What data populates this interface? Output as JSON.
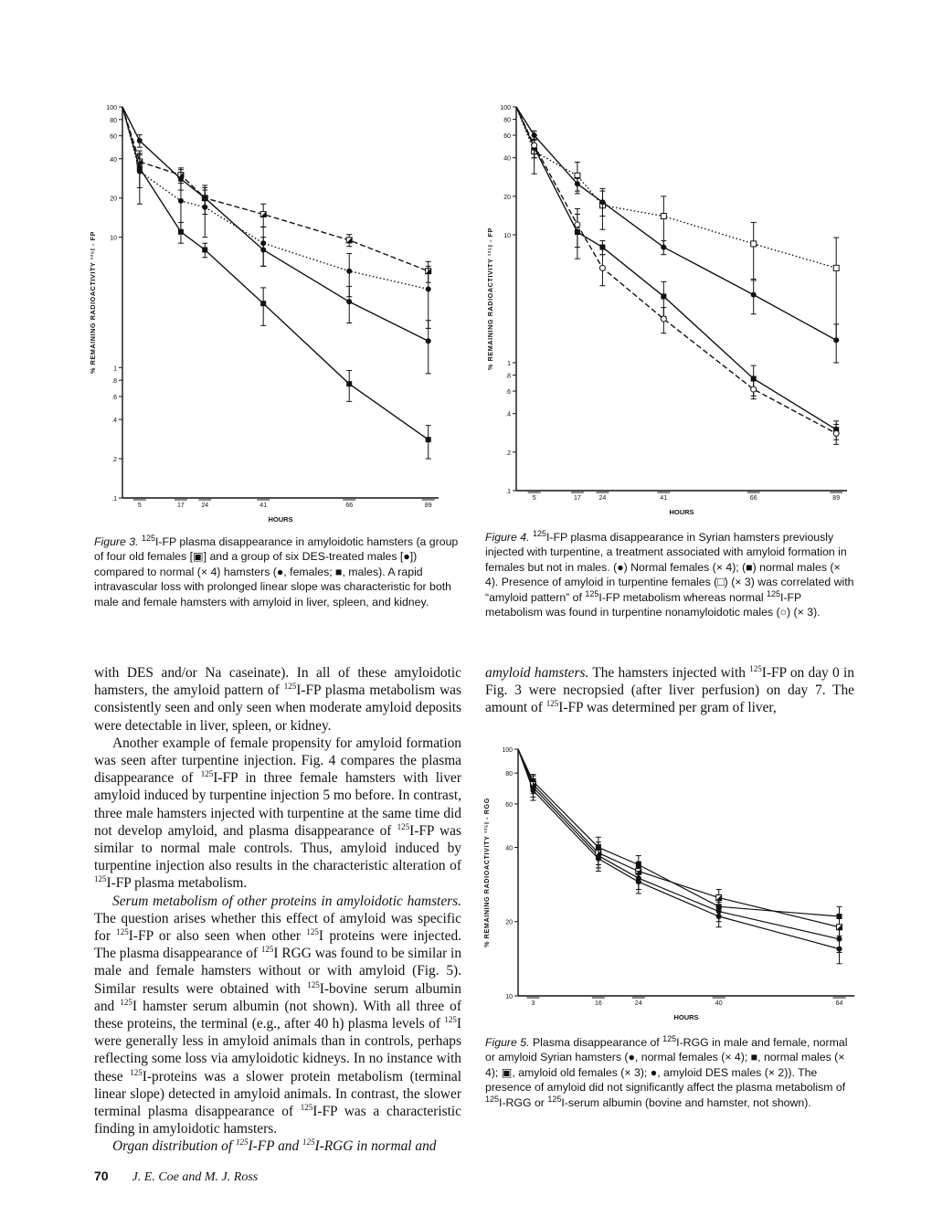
{
  "figures": [
    {
      "label": "Figure 3.",
      "caption_html": " <sup>125</sup>I-FP plasma disappearance in amyloidotic hamsters (a group of four old females [&#9635;] and a group of six DES-treated males [&#9679;]) compared to normal (&#215; 4) hamsters (&#9679;, females; &#9632;, males). A rapid intravascular loss with prolonged linear slope was characteristic for both male and female hamsters with amyloid in liver, spleen, and kidney.",
      "ylabel": "% REMAINING RADIOACTIVITY ¹²⁵I - FP",
      "xlabel": "HOURS"
    },
    {
      "label": "Figure 4.",
      "caption_html": " <sup>125</sup>I-FP plasma disappearance in Syrian hamsters previously injected with turpentine, a treatment associated with amyloid formation in females but not in males. (&#9679;) Normal females (&#215; 4); (&#9632;) normal males (&#215; 4). Presence of amyloid in turpentine females (&#9633;) (&#215; 3) was correlated with &#8220;amyloid pattern&#8221; of <sup>125</sup>I-FP metabolism whereas normal <sup>125</sup>I-FP metabolism was found in turpentine nonamyloidotic males (&#9675;) (&#215; 3).",
      "ylabel": "% REMAINING RADIOACTIVITY ¹²⁵I - FP",
      "xlabel": "HOURS"
    },
    {
      "label": "Figure 5.",
      "caption_html": " Plasma disappearance of <sup>125</sup>I-RGG in male and female, normal or amyloid Syrian hamsters (&#9679;, normal females (&#215; 4); &#9632;, normal males (&#215; 4); &#9635;, amyloid old females (&#215; 3); &#9679;, amyloid DES males (&#215; 2)). The presence of amyloid did not significantly affect the plasma metabolism of <sup>125</sup>I-RGG or <sup>125</sup>I-serum albumin (bovine and hamster, not shown).",
      "ylabel": "% REMAINING RADIOACTIVITY ¹²⁵I - RGG",
      "xlabel": "HOURS"
    }
  ],
  "chart_data": [
    {
      "type": "line",
      "scale": "log",
      "xlabel": "HOURS",
      "ylabel": "% REMAINING RADIOACTIVITY ¹²⁵I - FP",
      "xticks": [
        5,
        17,
        24,
        41,
        66,
        89
      ],
      "yticks": [
        "100",
        "80",
        "60",
        "40",
        "20",
        "10",
        "1",
        ".8",
        ".6",
        ".4",
        ".2",
        ".1"
      ],
      "ylim": [
        0.1,
        100
      ],
      "x": [
        0,
        5,
        17,
        24,
        41,
        66,
        89
      ],
      "series": [
        {
          "name": "amyloid old females",
          "marker": "half-square",
          "dash": "dashed",
          "values": [
            100,
            38,
            30,
            20,
            15,
            9.5,
            5.5
          ],
          "err": [
            0,
            5,
            4,
            3,
            3,
            1,
            1
          ]
        },
        {
          "name": "amyloid DES males",
          "marker": "circle",
          "dash": "dotted",
          "values": [
            100,
            32,
            19,
            17,
            9,
            5.5,
            4
          ],
          "err": [
            0,
            14,
            8,
            7,
            3,
            2,
            2
          ]
        },
        {
          "name": "normal females",
          "marker": "circle",
          "dash": "solid",
          "values": [
            100,
            55,
            28,
            20,
            8,
            3.2,
            1.6
          ],
          "err": [
            0,
            6,
            5,
            5,
            2,
            1,
            0.7
          ]
        },
        {
          "name": "normal males",
          "marker": "square",
          "dash": "solid",
          "values": [
            100,
            34,
            11,
            8,
            3.1,
            0.75,
            0.28
          ],
          "err": [
            0,
            10,
            2,
            1,
            1,
            0.2,
            0.08
          ]
        }
      ]
    },
    {
      "type": "line",
      "scale": "log",
      "xlabel": "HOURS",
      "ylabel": "% REMAINING RADIOACTIVITY ¹²⁵I - FP",
      "xticks": [
        5,
        17,
        24,
        41,
        66,
        89
      ],
      "yticks": [
        "100",
        "80",
        "60",
        "40",
        "20",
        "10",
        "1",
        ".8",
        ".6",
        ".4",
        ".2",
        ".1"
      ],
      "ylim": [
        0.1,
        100
      ],
      "x": [
        0,
        5,
        17,
        24,
        41,
        66,
        89
      ],
      "series": [
        {
          "name": "turpentine females (amyloid)",
          "marker": "open-square",
          "dash": "dotted",
          "values": [
            100,
            45,
            29,
            17,
            14,
            8.5,
            5.5
          ],
          "err": [
            0,
            15,
            8,
            6,
            6,
            4,
            4
          ]
        },
        {
          "name": "normal females",
          "marker": "circle",
          "dash": "solid",
          "values": [
            100,
            60,
            25,
            18,
            8,
            3.4,
            1.5
          ],
          "err": [
            0,
            5,
            3,
            4,
            1,
            1,
            0.5
          ]
        },
        {
          "name": "normal males",
          "marker": "square",
          "dash": "solid",
          "values": [
            100,
            48,
            10.5,
            8,
            3.3,
            0.75,
            0.3
          ],
          "err": [
            0,
            8,
            4,
            1,
            1,
            0.2,
            0.05
          ]
        },
        {
          "name": "turpentine males (nonamyloidotic)",
          "marker": "open-circle",
          "dash": "dashed",
          "values": [
            100,
            50,
            12,
            5.5,
            2.2,
            0.62,
            0.28
          ],
          "err": [
            0,
            10,
            4,
            1.5,
            0.5,
            0.1,
            0.05
          ]
        }
      ]
    },
    {
      "type": "line",
      "scale": "log",
      "xlabel": "HOURS",
      "ylabel": "% REMAINING RADIOACTIVITY ¹²⁵I - RGG",
      "xticks": [
        3,
        16,
        24,
        40,
        64
      ],
      "yticks": [
        "100",
        "80",
        "60",
        "40",
        "20",
        "10"
      ],
      "ylim": [
        10,
        100
      ],
      "x": [
        0,
        3,
        16,
        24,
        40,
        64
      ],
      "series": [
        {
          "name": "normal females",
          "marker": "circle",
          "dash": "solid",
          "values": [
            100,
            70,
            37,
            30,
            22,
            17
          ],
          "err": [
            0,
            6,
            4,
            3,
            2,
            2
          ]
        },
        {
          "name": "normal males",
          "marker": "square",
          "dash": "solid",
          "values": [
            100,
            74,
            40,
            34,
            23,
            21
          ],
          "err": [
            0,
            5,
            4,
            3,
            2,
            2
          ]
        },
        {
          "name": "amyloid old females",
          "marker": "half-square",
          "dash": "solid",
          "values": [
            100,
            72,
            38,
            32,
            25,
            19
          ],
          "err": [
            0,
            6,
            4,
            3,
            2,
            2
          ]
        },
        {
          "name": "amyloid DES males",
          "marker": "circle",
          "dash": "solid",
          "values": [
            100,
            68,
            36,
            29,
            21,
            15.5
          ],
          "err": [
            0,
            6,
            4,
            3,
            2,
            2
          ]
        }
      ]
    }
  ],
  "body": {
    "left_paragraphs": [
      "with DES and/or Na caseinate). In all of these amyloidotic hamsters, the amyloid pattern of <sup>125</sup>I-FP plasma metabolism was consistently seen and only seen when moderate amyloid deposits were detectable in liver, spleen, or kidney.",
      "Another example of female propensity for amyloid formation was seen after turpentine injection. Fig. 4 compares the plasma disappearance of <sup>125</sup>I-FP in three female hamsters with liver amyloid induced by turpentine injection 5 mo before. In contrast, three male hamsters injected with turpentine at the same time did not develop amyloid, and plasma disappearance of <sup>125</sup>I-FP was similar to normal male controls. Thus, amyloid induced by turpentine injection also results in the characteristic alteration of <sup>125</sup>I-FP plasma metabolism.",
      "<i>Serum metabolism of other proteins in amyloidotic hamsters.</i> The question arises whether this effect of amyloid was specific for <sup>125</sup>I-FP or also seen when other <sup>125</sup>I proteins were injected. The plasma disappearance of <sup>125</sup>I RGG was found to be similar in male and female hamsters without or with amyloid (Fig. 5). Similar results were obtained with <sup>125</sup>I-bovine serum albumin and <sup>125</sup>I hamster serum albumin (not shown). With all three of these proteins, the terminal (e.g., after 40 h) plasma levels of <sup>125</sup>I were generally less in amyloid animals than in controls, perhaps reflecting some loss via amyloidotic kidneys. In no instance with these <sup>125</sup>I-proteins was a slower protein metabolism (terminal linear slope) detected in amyloid animals. In contrast, the slower terminal plasma disappearance of <sup>125</sup>I-FP was a characteristic finding in amyloidotic hamsters.",
      "<i>Organ distribution of <sup>125</sup>I-FP and <sup>125</sup>I-RGG in normal and</i>"
    ],
    "right_paragraph": "<i>amyloid hamsters.</i> The hamsters injected with <sup>125</sup>I-FP on day 0 in Fig. 3 were necropsied (after liver perfusion) on day 7. The amount of <sup>125</sup>I-FP was determined per gram of liver,"
  },
  "footer": {
    "page_number": "70",
    "authors": "J. E. Coe and M. J. Ross"
  }
}
